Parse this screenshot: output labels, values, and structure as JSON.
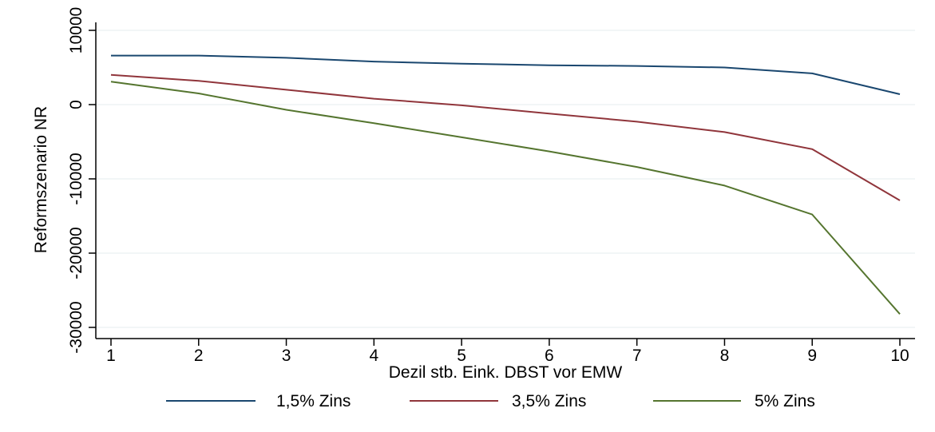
{
  "chart_data": {
    "type": "line",
    "title": "",
    "xlabel": "Dezil stb. Eink. DBST vor EMW",
    "ylabel": "Reformszenario  NR",
    "x": [
      1,
      2,
      3,
      4,
      5,
      6,
      7,
      8,
      9,
      10
    ],
    "xlim": [
      1,
      10
    ],
    "ylim": [
      -30000,
      10000
    ],
    "x_ticks": [
      "1",
      "2",
      "3",
      "4",
      "5",
      "6",
      "7",
      "8",
      "9",
      "10"
    ],
    "y_ticks": [
      {
        "value": 10000,
        "label": "10000"
      },
      {
        "value": 0,
        "label": "0"
      },
      {
        "value": -10000,
        "label": "-10000"
      },
      {
        "value": -20000,
        "label": "-20000"
      },
      {
        "value": -30000,
        "label": "-30000"
      }
    ],
    "grid": "horizontal",
    "legend_position": "bottom",
    "series": [
      {
        "name": "1,5% Zins",
        "color": "#1a476f",
        "values": [
          6600,
          6600,
          6300,
          5800,
          5500,
          5300,
          5200,
          5000,
          4200,
          1400
        ]
      },
      {
        "name": "3,5% Zins",
        "color": "#90353b",
        "values": [
          4000,
          3200,
          2000,
          800,
          -100,
          -1200,
          -2300,
          -3700,
          -6000,
          -12900
        ]
      },
      {
        "name": "5% Zins",
        "color": "#55752f",
        "values": [
          3100,
          1500,
          -700,
          -2500,
          -4400,
          -6300,
          -8400,
          -10900,
          -14800,
          -28200
        ]
      }
    ]
  }
}
